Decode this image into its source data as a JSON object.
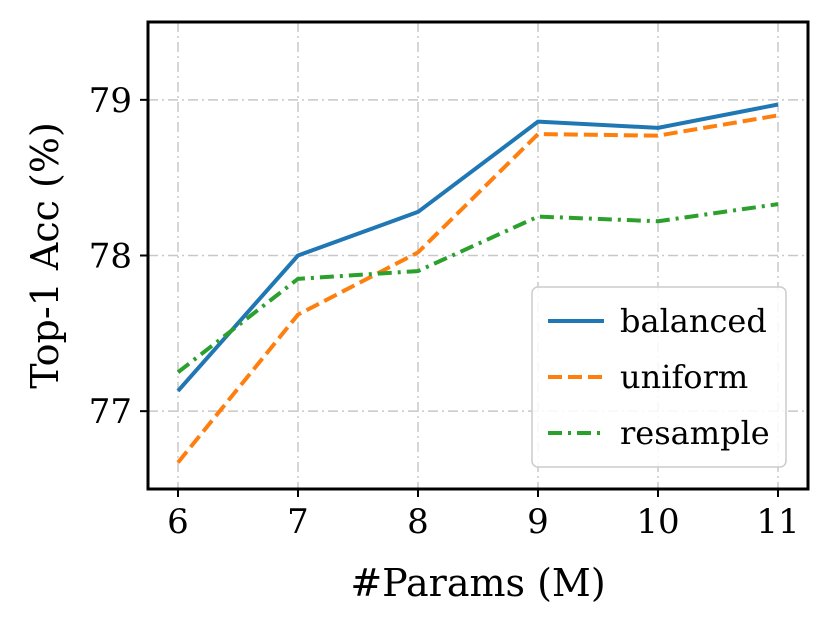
{
  "chart_data": {
    "type": "line",
    "title": "",
    "xlabel": "#Params (M)",
    "ylabel": "Top-1 Acc (%)",
    "x": [
      6,
      7,
      8,
      9,
      10,
      11
    ],
    "xlim": [
      5.75,
      11.25
    ],
    "ylim": [
      76.5,
      79.5
    ],
    "xticks": [
      "6",
      "7",
      "8",
      "9",
      "10",
      "11"
    ],
    "yticks": [
      "77",
      "78",
      "79"
    ],
    "grid": true,
    "legend_position": "lower-right",
    "series": [
      {
        "name": "balanced",
        "values": [
          77.13,
          78.0,
          78.28,
          78.86,
          78.82,
          78.97
        ],
        "color": "#1f77b4",
        "style": "solid"
      },
      {
        "name": "uniform",
        "values": [
          76.67,
          77.62,
          78.02,
          78.78,
          78.77,
          78.9
        ],
        "color": "#ff7f0e",
        "style": "dashed"
      },
      {
        "name": "resample",
        "values": [
          77.25,
          77.85,
          77.9,
          78.25,
          78.22,
          78.33
        ],
        "color": "#2ca02c",
        "style": "dashdot"
      }
    ]
  }
}
